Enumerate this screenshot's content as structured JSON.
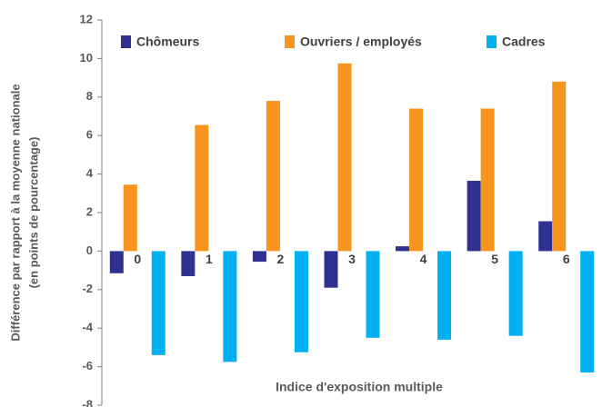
{
  "chart_data": {
    "type": "bar",
    "ylabel": [
      "Différence par rapport à la moyenne nationale",
      "(en points de pourcentage)"
    ],
    "xlabel": "Indice d'exposition multiple",
    "categories": [
      "0",
      "1",
      "2",
      "3",
      "4",
      "5",
      "6"
    ],
    "series": [
      {
        "name": "Chômeurs",
        "color": "#2e3192",
        "values": [
          -1.15,
          -1.3,
          -0.55,
          -1.9,
          0.25,
          3.65,
          1.55
        ]
      },
      {
        "name": "Ouvriers / employés",
        "color": "#f7941d",
        "values": [
          3.45,
          6.55,
          7.8,
          9.75,
          7.4,
          7.4,
          8.8
        ]
      },
      {
        "name": "Cadres",
        "color": "#00b0f0",
        "values": [
          -5.4,
          -5.75,
          -5.25,
          -4.5,
          -4.6,
          -4.4,
          -6.3
        ]
      }
    ],
    "ylim": [
      -8,
      12
    ],
    "yticks": [
      -8,
      -6,
      -4,
      -2,
      0,
      2,
      4,
      6,
      8,
      10,
      12
    ],
    "grid": false
  }
}
